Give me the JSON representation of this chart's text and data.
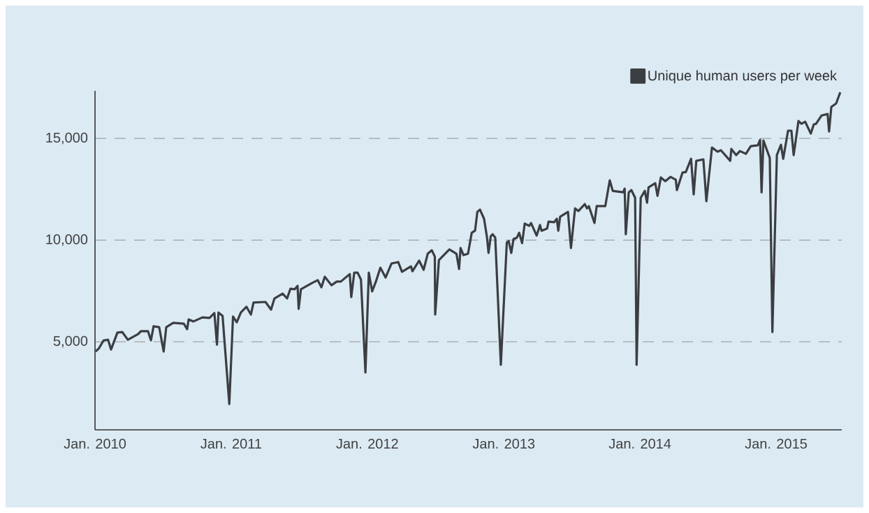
{
  "chart_data": {
    "type": "line",
    "x": [
      "2010-01-03",
      "2010-01-12",
      "2010-01-24",
      "2010-02-05",
      "2010-02-13",
      "2010-03-02",
      "2010-03-15",
      "2010-03-30",
      "2010-04-27",
      "2010-05-04",
      "2010-05-23",
      "2010-05-31",
      "2010-06-07",
      "2010-06-22",
      "2010-07-04",
      "2010-07-11",
      "2010-07-30",
      "2010-08-27",
      "2010-09-05",
      "2010-09-09",
      "2010-09-22",
      "2010-10-16",
      "2010-11-04",
      "2010-11-17",
      "2010-11-24",
      "2010-11-28",
      "2010-12-09",
      "2010-12-27",
      "2011-01-06",
      "2011-01-16",
      "2011-01-27",
      "2011-02-11",
      "2011-02-23",
      "2011-03-02",
      "2011-04-03",
      "2011-04-18",
      "2011-04-27",
      "2011-05-19",
      "2011-05-31",
      "2011-06-09",
      "2011-06-20",
      "2011-06-28",
      "2011-07-01",
      "2011-07-07",
      "2011-08-06",
      "2011-08-21",
      "2011-08-31",
      "2011-09-09",
      "2011-09-27",
      "2011-10-11",
      "2011-10-22",
      "2011-11-15",
      "2011-11-19",
      "2011-11-27",
      "2011-12-06",
      "2011-12-15",
      "2011-12-27",
      "2012-01-05",
      "2012-01-14",
      "2012-01-24",
      "2012-02-05",
      "2012-02-19",
      "2012-03-06",
      "2012-03-24",
      "2012-04-03",
      "2012-04-27",
      "2012-05-01",
      "2012-05-19",
      "2012-05-31",
      "2012-06-11",
      "2012-06-22",
      "2012-06-30",
      "2012-07-01",
      "2012-07-11",
      "2012-08-08",
      "2012-08-27",
      "2012-09-03",
      "2012-09-07",
      "2012-09-15",
      "2012-09-27",
      "2012-10-07",
      "2012-10-16",
      "2012-10-22",
      "2012-10-29",
      "2012-11-09",
      "2012-11-17",
      "2012-11-21",
      "2012-11-27",
      "2012-12-02",
      "2012-12-09",
      "2012-12-24",
      "2013-01-09",
      "2013-01-14",
      "2013-01-21",
      "2013-01-27",
      "2013-02-05",
      "2013-02-11",
      "2013-02-19",
      "2013-02-26",
      "2013-03-10",
      "2013-03-15",
      "2013-03-30",
      "2013-04-08",
      "2013-04-12",
      "2013-04-27",
      "2013-05-01",
      "2013-05-16",
      "2013-05-23",
      "2013-05-27",
      "2013-06-01",
      "2013-06-22",
      "2013-06-30",
      "2013-07-11",
      "2013-07-20",
      "2013-08-06",
      "2013-08-12",
      "2013-08-17",
      "2013-09-01",
      "2013-09-07",
      "2013-09-30",
      "2013-10-12",
      "2013-10-20",
      "2013-11-17",
      "2013-11-21",
      "2013-11-24",
      "2013-12-02",
      "2013-12-09",
      "2013-12-19",
      "2013-12-23",
      "2014-01-03",
      "2014-01-14",
      "2014-01-20",
      "2014-01-24",
      "2014-02-11",
      "2014-02-17",
      "2014-02-26",
      "2014-03-10",
      "2014-03-24",
      "2014-04-07",
      "2014-04-10",
      "2014-04-25",
      "2014-05-04",
      "2014-05-18",
      "2014-05-25",
      "2014-06-01",
      "2014-06-20",
      "2014-06-28",
      "2014-07-13",
      "2014-07-28",
      "2014-08-06",
      "2014-08-31",
      "2014-09-03",
      "2014-09-16",
      "2014-09-26",
      "2014-10-12",
      "2014-10-25",
      "2014-11-13",
      "2014-11-19",
      "2014-11-23",
      "2014-11-28",
      "2014-12-15",
      "2014-12-22",
      "2015-01-03",
      "2015-01-14",
      "2015-01-20",
      "2015-02-02",
      "2015-02-11",
      "2015-02-17",
      "2015-03-02",
      "2015-03-10",
      "2015-03-20",
      "2015-04-04",
      "2015-04-12",
      "2015-04-18",
      "2015-05-03",
      "2015-05-19",
      "2015-05-23",
      "2015-05-29",
      "2015-06-11",
      "2015-06-22"
    ],
    "series": [
      {
        "name": "Unique human users per week",
        "color": "#3b3e42",
        "values": [
          4520,
          4690,
          5070,
          5100,
          4620,
          5450,
          5480,
          5100,
          5380,
          5520,
          5520,
          5070,
          5760,
          5720,
          4520,
          5720,
          5930,
          5890,
          5620,
          6100,
          6000,
          6200,
          6170,
          6410,
          4860,
          6440,
          6270,
          1940,
          6240,
          5960,
          6440,
          6720,
          6340,
          6930,
          6960,
          6580,
          7130,
          7370,
          7130,
          7610,
          7580,
          7750,
          6620,
          7580,
          7890,
          8030,
          7680,
          8200,
          7780,
          7960,
          7960,
          8330,
          7200,
          8400,
          8400,
          8060,
          3490,
          8400,
          7480,
          7960,
          8640,
          8160,
          8850,
          8920,
          8440,
          8710,
          8470,
          8990,
          8540,
          9330,
          9500,
          9190,
          6340,
          9020,
          9540,
          9330,
          8580,
          9610,
          9260,
          9330,
          10360,
          10470,
          11390,
          11500,
          11050,
          10120,
          9370,
          10190,
          10290,
          10120,
          3870,
          9880,
          9950,
          9370,
          10050,
          10120,
          10360,
          9850,
          10810,
          10700,
          10840,
          10220,
          10740,
          10460,
          10570,
          10910,
          10880,
          11050,
          10460,
          11150,
          11390,
          9610,
          11560,
          11430,
          11770,
          11560,
          11670,
          10840,
          11670,
          11670,
          12940,
          12420,
          12350,
          12530,
          10290,
          12350,
          12460,
          12080,
          3870,
          12080,
          12420,
          11840,
          12590,
          12800,
          12180,
          13080,
          12900,
          13110,
          12970,
          12460,
          13320,
          13350,
          14000,
          12250,
          13900,
          13970,
          11910,
          14550,
          14350,
          14420,
          13900,
          14480,
          14180,
          14380,
          14240,
          14620,
          14660,
          14930,
          12350,
          14900,
          14040,
          5480,
          14180,
          14690,
          14000,
          15380,
          15380,
          14180,
          15860,
          15720,
          15820,
          15240,
          15690,
          15720,
          16130,
          16200,
          15340,
          16550,
          16720,
          17270
        ]
      }
    ],
    "xlim": [
      "2010-01-01",
      "2015-06-26"
    ],
    "ylim": [
      670,
      17340
    ],
    "xticks": [
      {
        "value": "2010-01",
        "label": "Jan. 2010"
      },
      {
        "value": "2011-01",
        "label": "Jan. 2011"
      },
      {
        "value": "2012-01",
        "label": "Jan. 2012"
      },
      {
        "value": "2013-01",
        "label": "Jan. 2013"
      },
      {
        "value": "2014-01",
        "label": "Jan. 2014"
      },
      {
        "value": "2015-01",
        "label": "Jan. 2015"
      }
    ],
    "yticks": [
      {
        "value": 5000,
        "label": "5,000"
      },
      {
        "value": 10000,
        "label": "10,000"
      },
      {
        "value": 15000,
        "label": "15,000"
      }
    ],
    "grid": "y",
    "legend": "top right",
    "marker": "none",
    "line_style": "solid"
  }
}
